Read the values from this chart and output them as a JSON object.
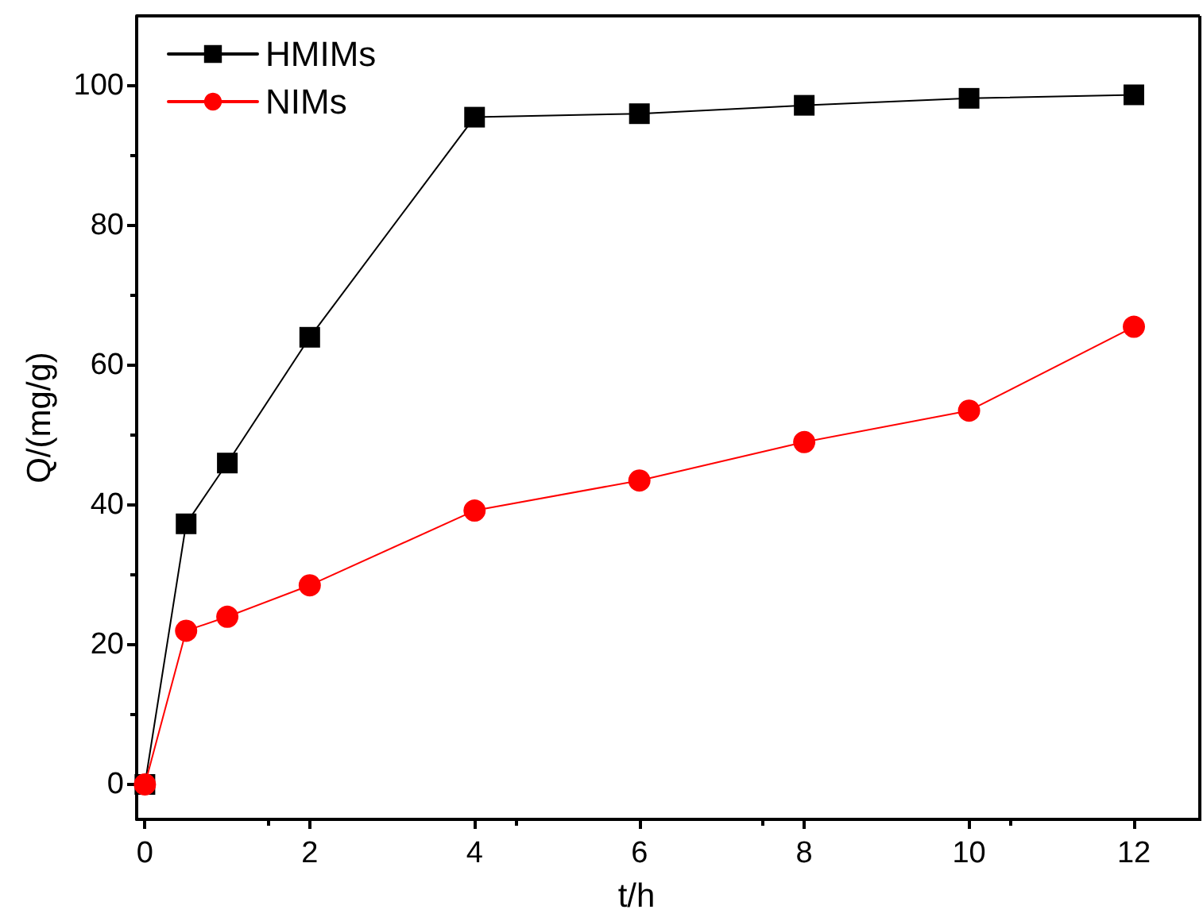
{
  "chart_data": {
    "type": "line",
    "xlabel": "t/h",
    "ylabel": "Q/(mg/g)",
    "x": [
      0,
      0.5,
      1,
      2,
      4,
      6,
      8,
      10,
      12
    ],
    "series": [
      {
        "name": "HMIMs",
        "color": "#000000",
        "marker": "square",
        "values": [
          0,
          37.3,
          46,
          64,
          95.5,
          96,
          97.2,
          98.2,
          98.7
        ]
      },
      {
        "name": "NIMs",
        "color": "#ff0000",
        "marker": "circle",
        "values": [
          0,
          22,
          24,
          28.5,
          39.2,
          43.5,
          49,
          53.5,
          65.5
        ]
      }
    ],
    "xlim": [
      -0.1,
      12.8
    ],
    "xticks": [
      0,
      2,
      4,
      6,
      8,
      10,
      12
    ],
    "ylim": [
      -5,
      110
    ],
    "yticks": [
      0,
      20,
      40,
      60,
      80,
      100
    ],
    "grid": false,
    "legend": "top left",
    "line_style": "solid"
  }
}
